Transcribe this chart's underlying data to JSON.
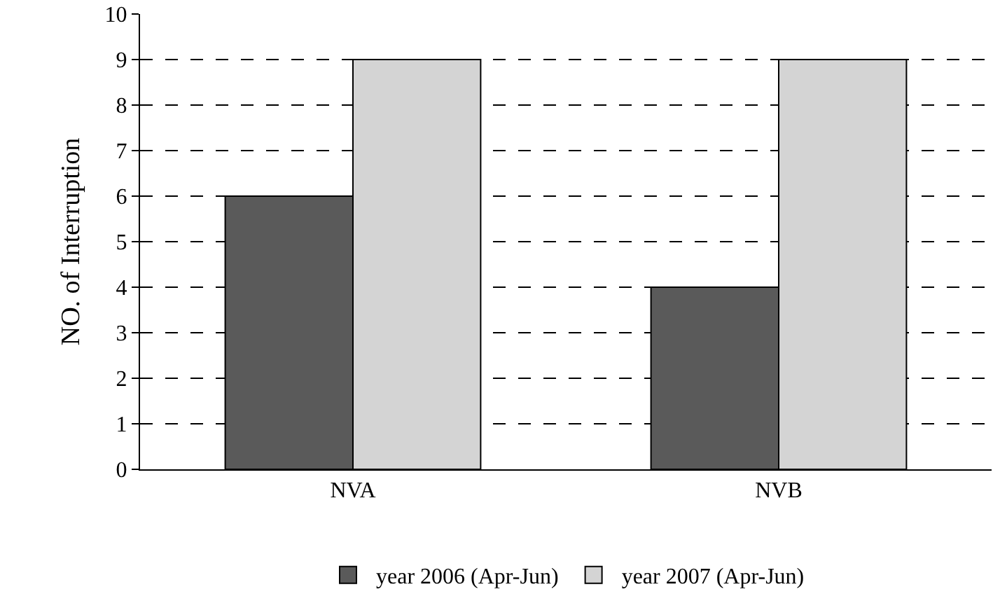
{
  "chart_data": {
    "type": "bar",
    "ylabel": "NO. of Interruption",
    "categories": [
      "NVA",
      "NVB"
    ],
    "series": [
      {
        "name": "year 2006 (Apr-Jun)",
        "color": "#5a5a5a",
        "values": [
          6,
          4
        ]
      },
      {
        "name": "year 2007 (Apr-Jun)",
        "color": "#d4d4d4",
        "values": [
          9,
          9
        ]
      }
    ],
    "ylim": [
      0,
      10
    ],
    "yticks": [
      0,
      1,
      2,
      3,
      4,
      5,
      6,
      7,
      8,
      9,
      10
    ],
    "grid": "y",
    "legend": "bottom"
  }
}
